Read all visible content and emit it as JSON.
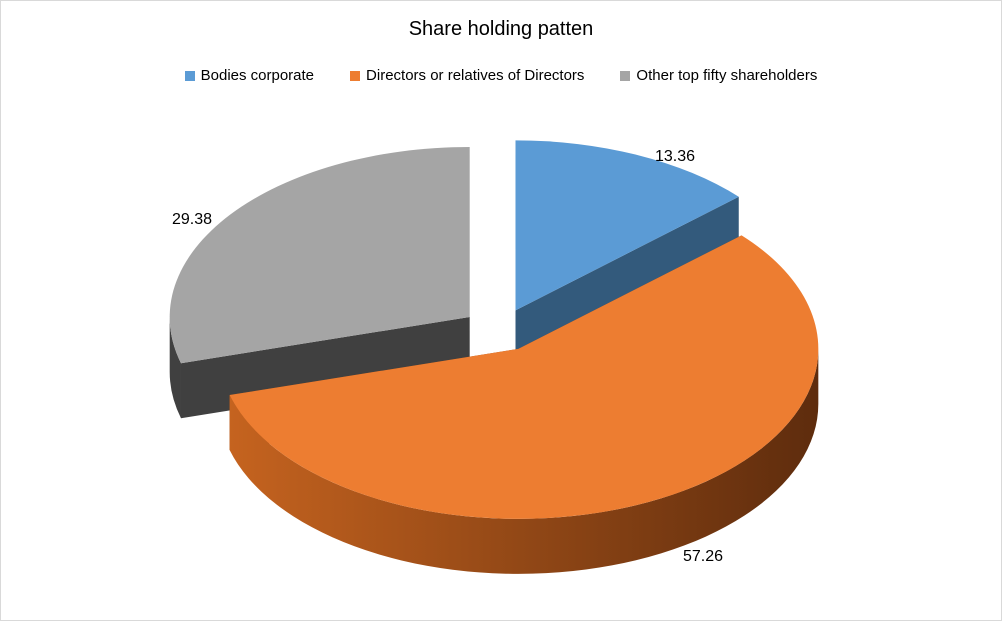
{
  "chart_data": {
    "type": "pie",
    "title": "Share holding patten",
    "legend_position": "top",
    "labels": [
      "Bodies corporate",
      "Directors or relatives of Directors",
      "Other top fifty shareholders"
    ],
    "values": [
      13.36,
      57.26,
      29.38
    ],
    "value_labels": [
      "13.36",
      "57.26",
      "29.38"
    ],
    "colors": [
      "#5b9bd5",
      "#ed7d31",
      "#a5a5a5"
    ],
    "side_colors": [
      "#335a7c",
      "#8a4514",
      "#404040"
    ],
    "exploded": true,
    "three_d": true
  }
}
